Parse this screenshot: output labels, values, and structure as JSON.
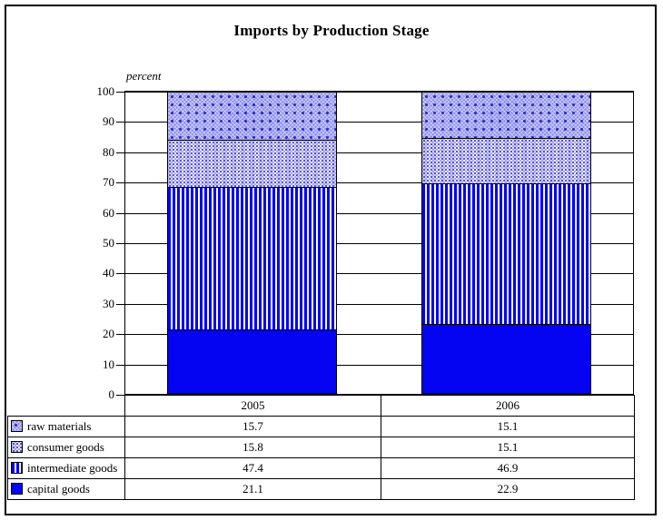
{
  "chart_data": {
    "type": "bar",
    "stacked": true,
    "title": "Imports by Production Stage",
    "ylabel": "percent",
    "ylim": [
      0,
      100
    ],
    "yticks": [
      0,
      10,
      20,
      30,
      40,
      50,
      60,
      70,
      80,
      90,
      100
    ],
    "grid": true,
    "legend_position": "bottom-table",
    "categories": [
      "2005",
      "2006"
    ],
    "series": [
      {
        "name": "raw materials",
        "pattern": "check",
        "color": "#8b8bef",
        "values": [
          15.7,
          15.1
        ]
      },
      {
        "name": "consumer goods",
        "pattern": "dots",
        "color": "#eaeafb",
        "values": [
          15.8,
          15.1
        ]
      },
      {
        "name": "intermediate goods",
        "pattern": "vstripes",
        "color": "#0404f2",
        "values": [
          47.4,
          46.9
        ]
      },
      {
        "name": "capital goods",
        "pattern": "solid",
        "color": "#0404f2",
        "values": [
          21.1,
          22.9
        ]
      }
    ],
    "colors": {
      "accent_blue": "#0404f2",
      "border": "#000000",
      "background": "#ffffff"
    }
  },
  "table": {
    "column_headers": [
      "2005",
      "2006"
    ],
    "rows": [
      {
        "label": "raw materials",
        "pattern": "check",
        "values": [
          "15.7",
          "15.1"
        ]
      },
      {
        "label": "consumer goods",
        "pattern": "dots",
        "values": [
          "15.8",
          "15.1"
        ]
      },
      {
        "label": "intermediate goods",
        "pattern": "vstripes",
        "values": [
          "47.4",
          "46.9"
        ]
      },
      {
        "label": "capital goods",
        "pattern": "solid",
        "values": [
          "21.1",
          "22.9"
        ]
      }
    ]
  }
}
